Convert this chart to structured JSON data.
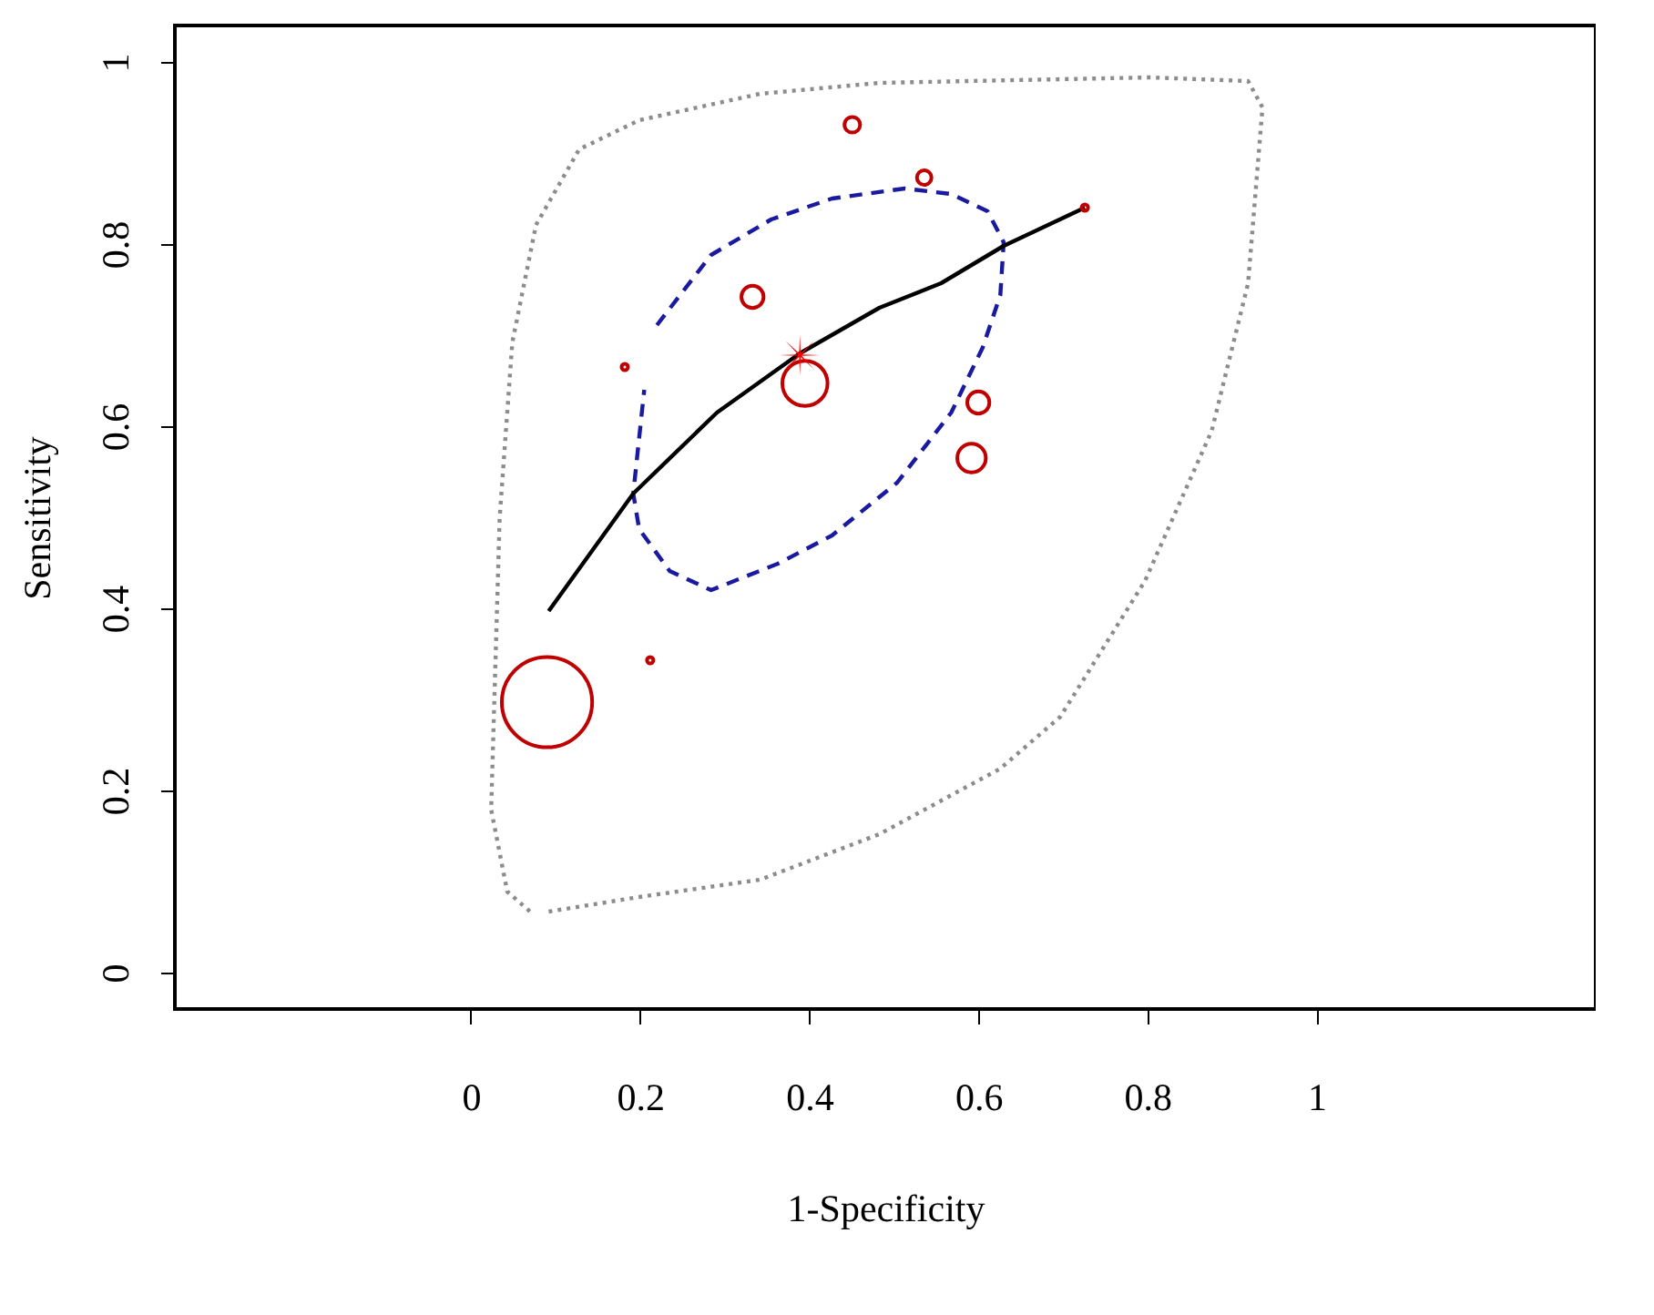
{
  "chart_data": {
    "type": "scatter",
    "xlabel": "1-Specificity",
    "ylabel": "Sensitivity",
    "xlim": [
      -0.35,
      1.33
    ],
    "ylim": [
      -0.04,
      1.04
    ],
    "xticks": [
      0,
      0.2,
      0.4,
      0.6,
      0.8,
      1
    ],
    "yticks": [
      0,
      0.2,
      0.4,
      0.6,
      0.8,
      1
    ],
    "series": [
      {
        "type": "line",
        "line_style": "dotted",
        "color": "#8c8c8c",
        "x": [
          0.092,
          0.199,
          0.342,
          0.483,
          0.626,
          0.697,
          0.797,
          0.876,
          0.919,
          0.936,
          0.919,
          0.803,
          0.483,
          0.342,
          0.199,
          0.128,
          0.077,
          0.049,
          0.034,
          0.024,
          0.043,
          0.07
        ],
        "values": [
          0.067,
          0.083,
          0.102,
          0.152,
          0.224,
          0.281,
          0.43,
          0.595,
          0.757,
          0.95,
          0.979,
          0.983,
          0.977,
          0.965,
          0.936,
          0.904,
          0.821,
          0.692,
          0.499,
          0.179,
          0.089,
          0.067
        ]
      },
      {
        "type": "line",
        "line_style": "dashed",
        "color": "#1a1aa0",
        "x": [
          0.22,
          0.284,
          0.355,
          0.427,
          0.513,
          0.568,
          0.611,
          0.63,
          0.626,
          0.605,
          0.568,
          0.504,
          0.427,
          0.363,
          0.284,
          0.235,
          0.199,
          0.192,
          0.205
        ],
        "values": [
          0.711,
          0.788,
          0.827,
          0.85,
          0.861,
          0.855,
          0.836,
          0.802,
          0.744,
          0.686,
          0.615,
          0.538,
          0.48,
          0.449,
          0.42,
          0.441,
          0.487,
          0.526,
          0.64
        ]
      },
      {
        "type": "line",
        "line_style": "solid",
        "color": "#000000",
        "x": [
          0.092,
          0.192,
          0.291,
          0.389,
          0.483,
          0.556,
          0.63,
          0.726
        ],
        "values": [
          0.397,
          0.526,
          0.615,
          0.68,
          0.73,
          0.757,
          0.798,
          0.84
        ]
      },
      {
        "type": "bubble",
        "color": "#c00000",
        "x": [
          0.09,
          0.212,
          0.182,
          0.333,
          0.395,
          0.451,
          0.536,
          0.6,
          0.592,
          0.726
        ],
        "values": [
          0.297,
          0.343,
          0.665,
          0.742,
          0.647,
          0.931,
          0.873,
          0.626,
          0.565,
          0.84
        ],
        "sizes": [
          1,
          0.005,
          0.005,
          0.06,
          0.25,
          0.03,
          0.026,
          0.06,
          0.1,
          0.005
        ]
      },
      {
        "marker": "cross",
        "color": "#ff0000",
        "x": [
          0.389
        ],
        "values": [
          0.678
        ]
      }
    ]
  }
}
